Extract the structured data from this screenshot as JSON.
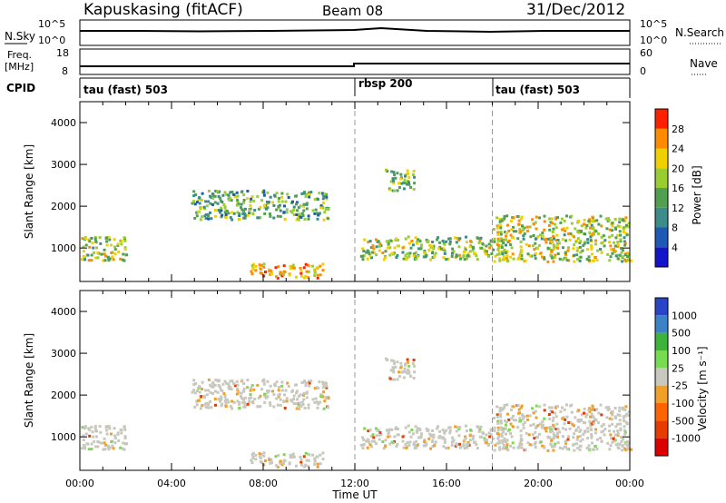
{
  "header": {
    "station": "Kapuskasing (fitACF)",
    "beam": "Beam 08",
    "date": "31/Dec/2012"
  },
  "noise_panel": {
    "left_label": "N.Sky",
    "right_label": "N.Search",
    "left_ticks": [
      "10^5",
      "10^0"
    ],
    "right_ticks": [
      "10^5",
      "10^0"
    ]
  },
  "freq_panel": {
    "left_label_1": "Freq.",
    "left_label_2": "[MHz]",
    "right_label": "Nave",
    "left_ticks": [
      "18",
      "8"
    ],
    "right_ticks": [
      "60",
      "0"
    ]
  },
  "cpid": {
    "label": "CPID",
    "segments": [
      {
        "name": "tau (fast) 503",
        "start_h": 0,
        "end_h": 12
      },
      {
        "name": "rbsp 200",
        "start_h": 12,
        "end_h": 18
      },
      {
        "name": "tau (fast) 503",
        "start_h": 18,
        "end_h": 24
      }
    ]
  },
  "colors": {
    "power_scale": [
      "#1414c8",
      "#1e5ab4",
      "#3c8c8c",
      "#50a050",
      "#9acd32",
      "#f0d000",
      "#ff8c00",
      "#ff2000"
    ],
    "velocity_scale": [
      "#2845c8",
      "#3c82c8",
      "#3cb43c",
      "#78dc50",
      "#c8c8be",
      "#f0a028",
      "#ff6400",
      "#e63c00",
      "#dc0000"
    ]
  },
  "chart_data": [
    {
      "type": "heatmap",
      "title": "Power",
      "xlabel": "Time UT",
      "ylabel": "Slant Range [km]",
      "x_ticks": [
        "00:00",
        "04:00",
        "08:00",
        "12:00",
        "16:00",
        "20:00",
        "00:00"
      ],
      "xlim_hours": [
        0,
        24
      ],
      "ylim": [
        200,
        4500
      ],
      "y_ticks": [
        1000,
        2000,
        3000,
        4000
      ],
      "colorbar": {
        "label": "Power [dB]",
        "ticks": [
          4,
          8,
          12,
          16,
          20,
          24,
          28
        ]
      },
      "echo_regions": [
        {
          "t": [
            0.0,
            2.0
          ],
          "range": [
            700,
            1300
          ],
          "level": 0.6
        },
        {
          "t": [
            4.8,
            10.8
          ],
          "range": [
            1700,
            2400
          ],
          "level": 0.45
        },
        {
          "t": [
            7.4,
            10.6
          ],
          "range": [
            300,
            650
          ],
          "level": 0.75
        },
        {
          "t": [
            12.2,
            18.0
          ],
          "range": [
            750,
            1300
          ],
          "level": 0.55
        },
        {
          "t": [
            13.3,
            14.6
          ],
          "range": [
            2400,
            2900
          ],
          "level": 0.5
        },
        {
          "t": [
            18.0,
            24.0
          ],
          "range": [
            700,
            1800
          ],
          "level": 0.6
        }
      ]
    },
    {
      "type": "heatmap",
      "title": "Velocity",
      "xlabel": "Time UT",
      "ylabel": "Slant Range [km]",
      "x_ticks": [
        "00:00",
        "04:00",
        "08:00",
        "12:00",
        "16:00",
        "20:00",
        "00:00"
      ],
      "xlim_hours": [
        0,
        24
      ],
      "ylim": [
        200,
        4500
      ],
      "y_ticks": [
        1000,
        2000,
        3000,
        4000
      ],
      "colorbar": {
        "label": "Velocity [m s⁻¹]",
        "ticks": [
          1000,
          500,
          100,
          25,
          -25,
          -100,
          -500,
          -1000
        ]
      },
      "echo_regions": [
        {
          "t": [
            0.0,
            2.0
          ],
          "range": [
            700,
            1300
          ],
          "v": 25
        },
        {
          "t": [
            4.8,
            10.8
          ],
          "range": [
            1700,
            2400
          ],
          "v": 0
        },
        {
          "t": [
            7.4,
            10.6
          ],
          "range": [
            300,
            650
          ],
          "v": -100
        },
        {
          "t": [
            12.2,
            18.0
          ],
          "range": [
            750,
            1300
          ],
          "v": 0
        },
        {
          "t": [
            13.3,
            14.6
          ],
          "range": [
            2400,
            2900
          ],
          "v": -100
        },
        {
          "t": [
            18.0,
            24.0
          ],
          "range": [
            700,
            1800
          ],
          "v": 0
        }
      ]
    }
  ]
}
